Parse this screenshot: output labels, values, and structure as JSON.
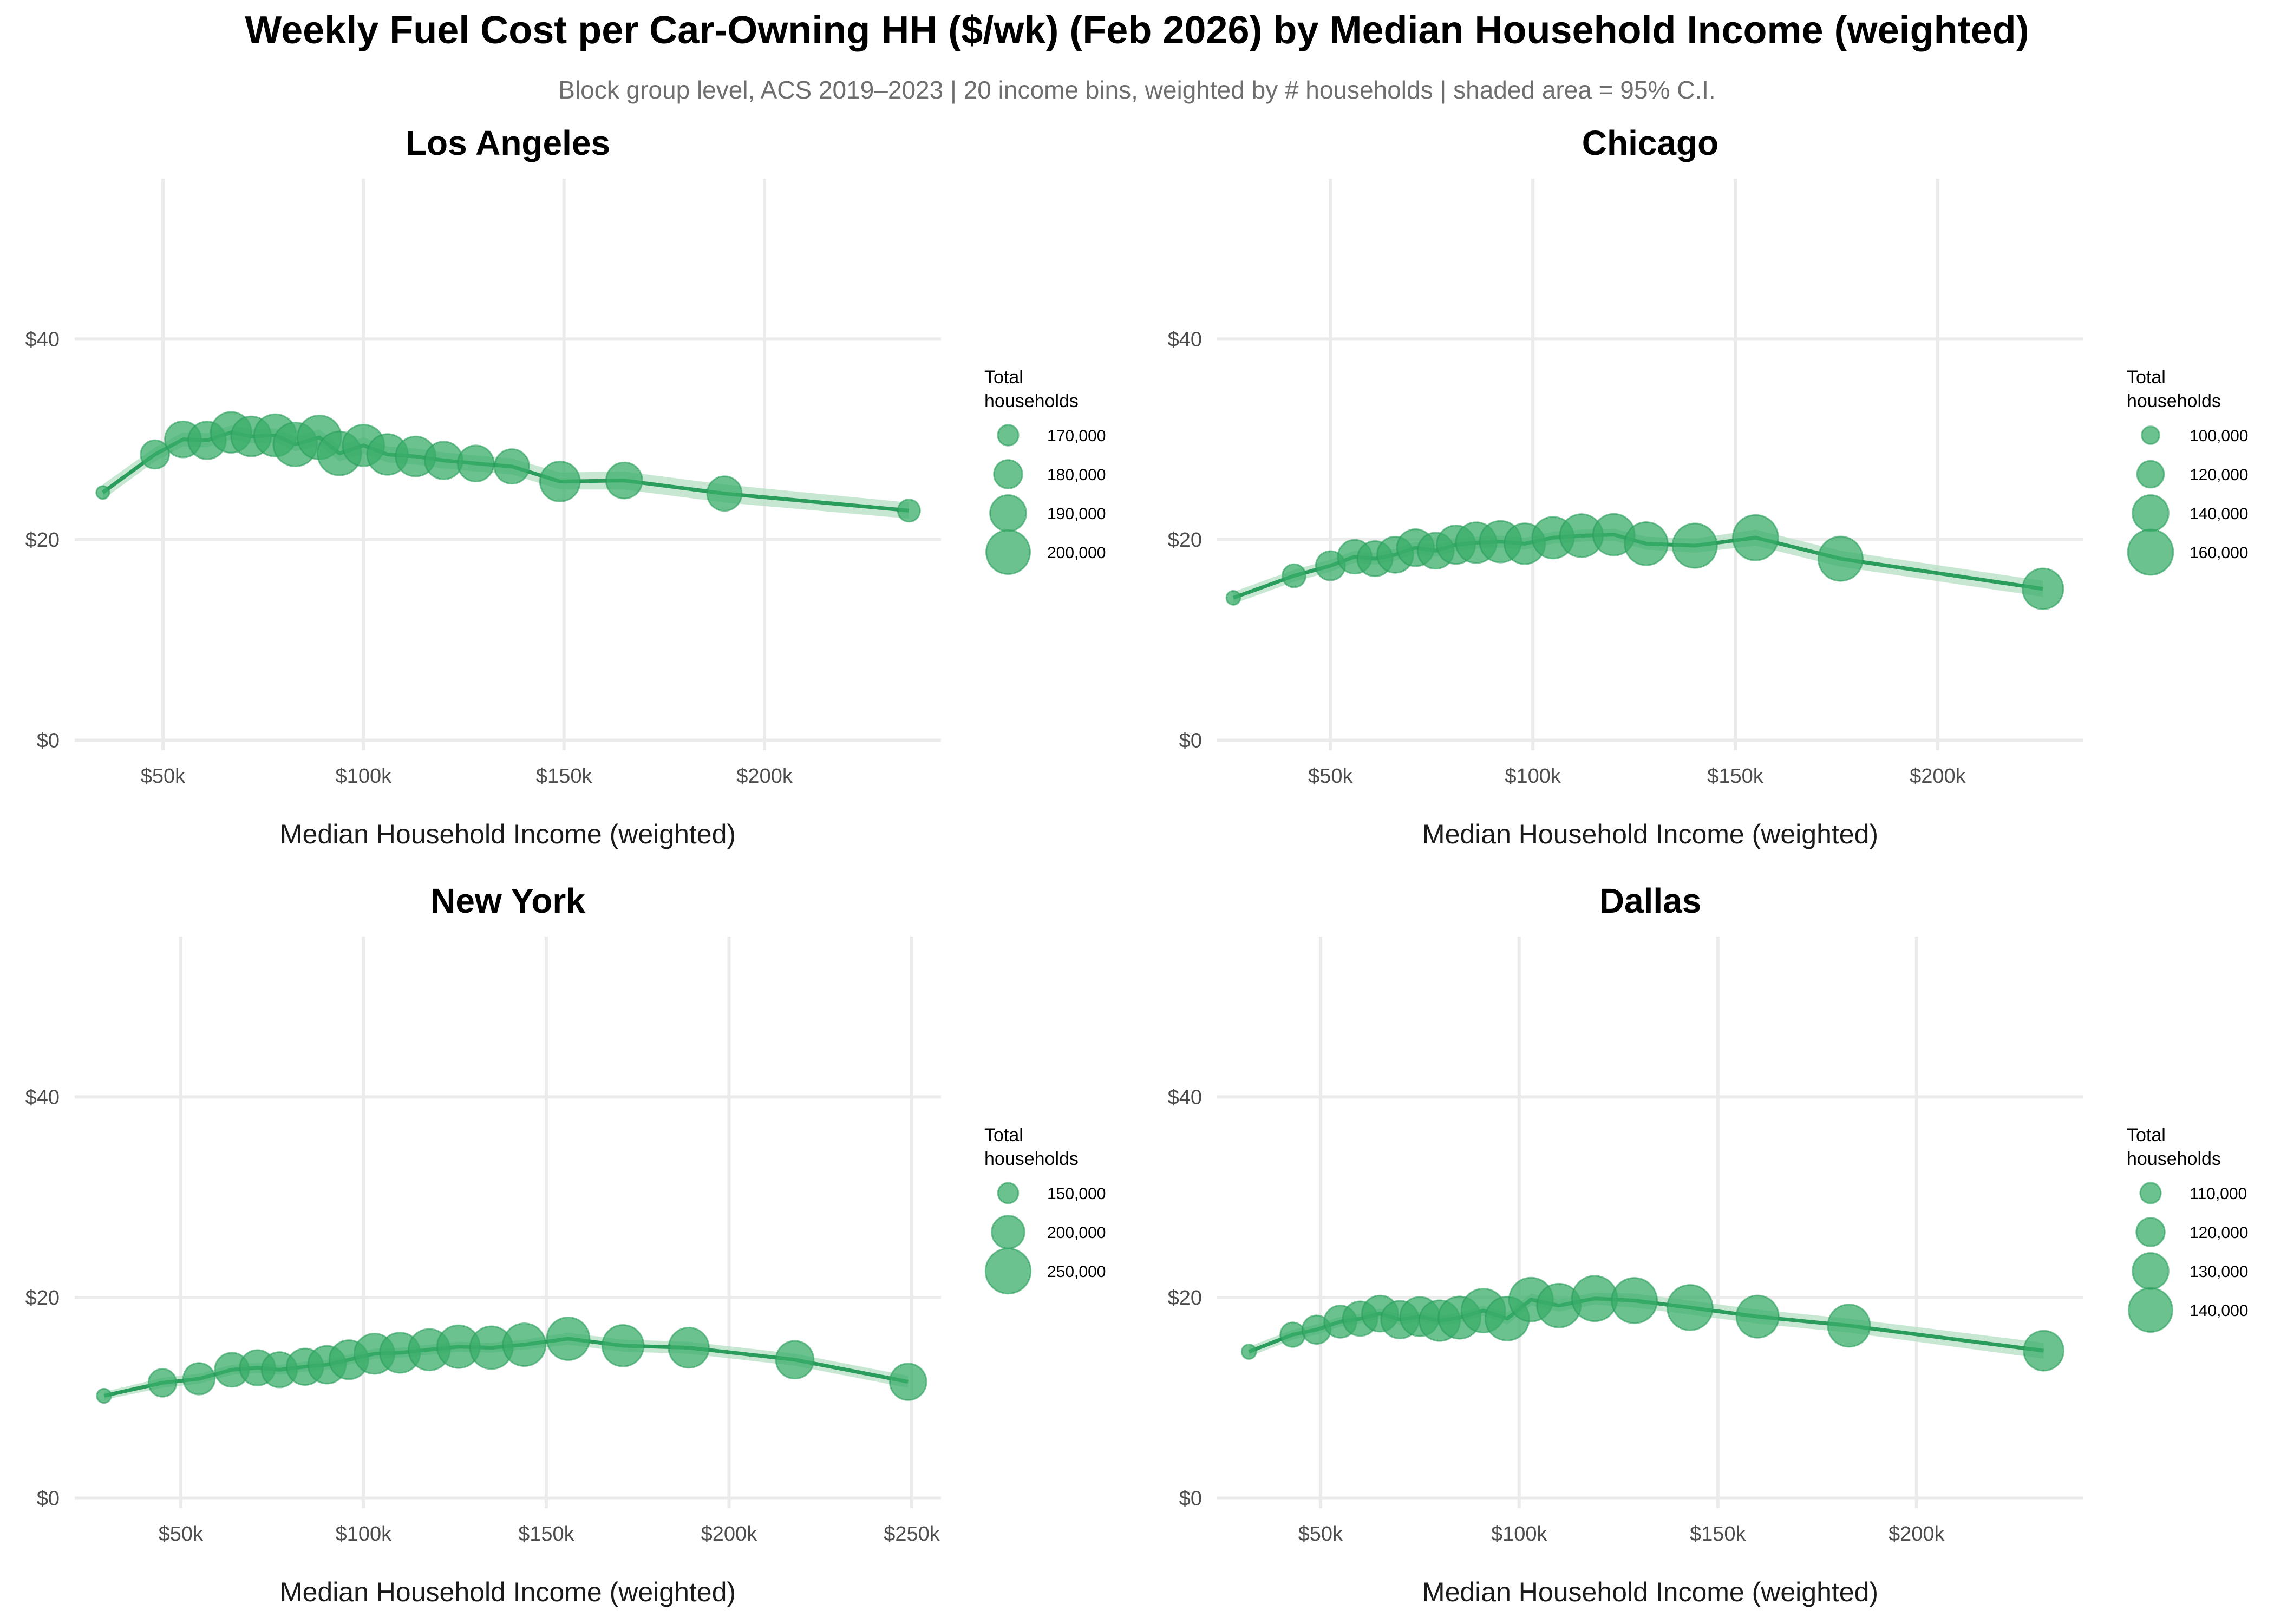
{
  "title": "Weekly Fuel Cost per Car-Owning HH ($/wk) (Feb 2026) by Median Household Income (weighted)",
  "subtitle": "Block group level, ACS 2019–2023 | 20 income bins, weighted by # households | shaded area = 95% C.I.",
  "colors": {
    "line": "#2a9d5c",
    "point": "#3aad6a",
    "band": "#b6dfc4",
    "grid": "#ebebeb"
  },
  "chart_data": [
    {
      "type": "line",
      "title": "Los Angeles",
      "xlabel": "Median Household Income (weighted)",
      "ylabel": "",
      "xlim": [
        28000,
        244000
      ],
      "ylim": [
        -1,
        56
      ],
      "x_ticks": [
        50000,
        100000,
        150000,
        200000
      ],
      "x_tick_labels": [
        "$50k",
        "$100k",
        "$150k",
        "$200k"
      ],
      "y_ticks": [
        0,
        20,
        40
      ],
      "y_tick_labels": [
        "$0",
        "$20",
        "$40"
      ],
      "grid": true,
      "legend": {
        "title_lines": [
          "Total",
          "households"
        ],
        "entries": [
          {
            "label": "170,000",
            "value": 170000
          },
          {
            "label": "180,000",
            "value": 180000
          },
          {
            "label": "190,000",
            "value": 190000
          },
          {
            "label": "200,000",
            "value": 200000
          }
        ],
        "size_range": [
          160000,
          205000
        ]
      },
      "points": [
        {
          "x": 35000,
          "y": 24.7,
          "lo": 24.0,
          "hi": 25.5,
          "n": 160000
        },
        {
          "x": 48000,
          "y": 28.5,
          "lo": 27.8,
          "hi": 29.2,
          "n": 180000
        },
        {
          "x": 55000,
          "y": 30.0,
          "lo": 29.3,
          "hi": 30.7,
          "n": 190000
        },
        {
          "x": 61000,
          "y": 29.9,
          "lo": 29.2,
          "hi": 30.6,
          "n": 192000
        },
        {
          "x": 67000,
          "y": 30.7,
          "lo": 30.0,
          "hi": 31.4,
          "n": 196000
        },
        {
          "x": 72000,
          "y": 30.3,
          "lo": 29.6,
          "hi": 31.0,
          "n": 195000
        },
        {
          "x": 78000,
          "y": 30.4,
          "lo": 29.7,
          "hi": 31.1,
          "n": 198000
        },
        {
          "x": 83000,
          "y": 29.5,
          "lo": 28.8,
          "hi": 30.3,
          "n": 200000
        },
        {
          "x": 89000,
          "y": 30.2,
          "lo": 29.4,
          "hi": 31.0,
          "n": 200000
        },
        {
          "x": 94000,
          "y": 28.6,
          "lo": 27.8,
          "hi": 29.4,
          "n": 200000
        },
        {
          "x": 100000,
          "y": 29.4,
          "lo": 28.6,
          "hi": 30.2,
          "n": 197000
        },
        {
          "x": 106000,
          "y": 28.5,
          "lo": 27.7,
          "hi": 29.3,
          "n": 196000
        },
        {
          "x": 113000,
          "y": 28.3,
          "lo": 27.5,
          "hi": 29.1,
          "n": 195000
        },
        {
          "x": 120000,
          "y": 27.9,
          "lo": 27.1,
          "hi": 28.7,
          "n": 192000
        },
        {
          "x": 128000,
          "y": 27.6,
          "lo": 26.8,
          "hi": 28.4,
          "n": 190000
        },
        {
          "x": 137000,
          "y": 27.3,
          "lo": 26.5,
          "hi": 28.1,
          "n": 188000
        },
        {
          "x": 149000,
          "y": 25.8,
          "lo": 25.0,
          "hi": 26.7,
          "n": 195000
        },
        {
          "x": 165000,
          "y": 25.9,
          "lo": 25.0,
          "hi": 26.8,
          "n": 190000
        },
        {
          "x": 190000,
          "y": 24.6,
          "lo": 23.7,
          "hi": 25.5,
          "n": 188000
        },
        {
          "x": 236000,
          "y": 22.9,
          "lo": 22.1,
          "hi": 23.7,
          "n": 172000
        }
      ]
    },
    {
      "type": "line",
      "title": "Chicago",
      "xlabel": "Median Household Income (weighted)",
      "ylabel": "",
      "xlim": [
        22000,
        236000
      ],
      "ylim": [
        -1,
        56
      ],
      "x_ticks": [
        50000,
        100000,
        150000,
        200000
      ],
      "x_tick_labels": [
        "$50k",
        "$100k",
        "$150k",
        "$200k"
      ],
      "y_ticks": [
        0,
        20,
        40
      ],
      "y_tick_labels": [
        "$0",
        "$20",
        "$40"
      ],
      "grid": true,
      "legend": {
        "title_lines": [
          "Total",
          "households"
        ],
        "entries": [
          {
            "label": "100,000",
            "value": 100000
          },
          {
            "label": "120,000",
            "value": 120000
          },
          {
            "label": "140,000",
            "value": 140000
          },
          {
            "label": "160,000",
            "value": 160000
          }
        ],
        "size_range": [
          90000,
          165000
        ]
      },
      "points": [
        {
          "x": 26000,
          "y": 14.2,
          "lo": 13.6,
          "hi": 14.8,
          "n": 92000
        },
        {
          "x": 41000,
          "y": 16.4,
          "lo": 15.8,
          "hi": 17.0,
          "n": 112000
        },
        {
          "x": 50000,
          "y": 17.4,
          "lo": 16.8,
          "hi": 18.0,
          "n": 125000
        },
        {
          "x": 56000,
          "y": 18.3,
          "lo": 17.7,
          "hi": 18.9,
          "n": 135000
        },
        {
          "x": 61000,
          "y": 18.1,
          "lo": 17.5,
          "hi": 18.7,
          "n": 138000
        },
        {
          "x": 66000,
          "y": 18.5,
          "lo": 17.9,
          "hi": 19.1,
          "n": 140000
        },
        {
          "x": 71000,
          "y": 19.2,
          "lo": 18.6,
          "hi": 19.8,
          "n": 142000
        },
        {
          "x": 76000,
          "y": 18.9,
          "lo": 18.3,
          "hi": 19.5,
          "n": 140000
        },
        {
          "x": 81000,
          "y": 19.5,
          "lo": 18.9,
          "hi": 20.1,
          "n": 145000
        },
        {
          "x": 86000,
          "y": 19.7,
          "lo": 19.1,
          "hi": 20.3,
          "n": 150000
        },
        {
          "x": 92000,
          "y": 19.8,
          "lo": 19.2,
          "hi": 20.4,
          "n": 152000
        },
        {
          "x": 98000,
          "y": 19.6,
          "lo": 19.0,
          "hi": 20.2,
          "n": 150000
        },
        {
          "x": 105000,
          "y": 20.2,
          "lo": 19.6,
          "hi": 20.8,
          "n": 152000
        },
        {
          "x": 112000,
          "y": 20.4,
          "lo": 19.8,
          "hi": 21.0,
          "n": 155000
        },
        {
          "x": 120000,
          "y": 20.5,
          "lo": 19.9,
          "hi": 21.1,
          "n": 152000
        },
        {
          "x": 128000,
          "y": 19.6,
          "lo": 19.0,
          "hi": 20.3,
          "n": 155000
        },
        {
          "x": 140000,
          "y": 19.4,
          "lo": 18.7,
          "hi": 20.1,
          "n": 158000
        },
        {
          "x": 155000,
          "y": 20.2,
          "lo": 19.4,
          "hi": 21.0,
          "n": 160000
        },
        {
          "x": 176000,
          "y": 18.1,
          "lo": 17.3,
          "hi": 18.9,
          "n": 158000
        },
        {
          "x": 226000,
          "y": 15.1,
          "lo": 14.3,
          "hi": 15.9,
          "n": 150000
        }
      ]
    },
    {
      "type": "line",
      "title": "New York",
      "xlabel": "Median Household Income (weighted)",
      "ylabel": "",
      "xlim": [
        21000,
        258000
      ],
      "ylim": [
        -1,
        56
      ],
      "x_ticks": [
        50000,
        100000,
        150000,
        200000,
        250000
      ],
      "x_tick_labels": [
        "$50k",
        "$100k",
        "$150k",
        "$200k",
        "$250k"
      ],
      "y_ticks": [
        0,
        20,
        40
      ],
      "y_tick_labels": [
        "$0",
        "$20",
        "$40"
      ],
      "grid": true,
      "legend": {
        "title_lines": [
          "Total",
          "households"
        ],
        "entries": [
          {
            "label": "150,000",
            "value": 150000
          },
          {
            "label": "200,000",
            "value": 200000
          },
          {
            "label": "250,000",
            "value": 250000
          }
        ],
        "size_range": [
          120000,
          260000
        ]
      },
      "points": [
        {
          "x": 29000,
          "y": 10.2,
          "lo": 9.8,
          "hi": 10.6,
          "n": 125000
        },
        {
          "x": 45000,
          "y": 11.5,
          "lo": 11.0,
          "hi": 12.0,
          "n": 180000
        },
        {
          "x": 55000,
          "y": 11.9,
          "lo": 11.4,
          "hi": 12.4,
          "n": 195000
        },
        {
          "x": 64000,
          "y": 12.8,
          "lo": 12.3,
          "hi": 13.3,
          "n": 205000
        },
        {
          "x": 71000,
          "y": 13.0,
          "lo": 12.5,
          "hi": 13.5,
          "n": 210000
        },
        {
          "x": 77000,
          "y": 12.8,
          "lo": 12.3,
          "hi": 13.3,
          "n": 210000
        },
        {
          "x": 84000,
          "y": 13.1,
          "lo": 12.6,
          "hi": 13.6,
          "n": 215000
        },
        {
          "x": 90000,
          "y": 13.3,
          "lo": 12.8,
          "hi": 13.8,
          "n": 220000
        },
        {
          "x": 96000,
          "y": 13.8,
          "lo": 13.3,
          "hi": 14.3,
          "n": 225000
        },
        {
          "x": 103000,
          "y": 14.4,
          "lo": 13.9,
          "hi": 14.9,
          "n": 230000
        },
        {
          "x": 110000,
          "y": 14.5,
          "lo": 14.0,
          "hi": 15.0,
          "n": 230000
        },
        {
          "x": 118000,
          "y": 14.8,
          "lo": 14.3,
          "hi": 15.3,
          "n": 235000
        },
        {
          "x": 126000,
          "y": 15.1,
          "lo": 14.6,
          "hi": 15.6,
          "n": 240000
        },
        {
          "x": 135000,
          "y": 15.0,
          "lo": 14.5,
          "hi": 15.5,
          "n": 240000
        },
        {
          "x": 144000,
          "y": 15.3,
          "lo": 14.8,
          "hi": 15.8,
          "n": 240000
        },
        {
          "x": 156000,
          "y": 15.9,
          "lo": 15.3,
          "hi": 16.5,
          "n": 240000
        },
        {
          "x": 171000,
          "y": 15.2,
          "lo": 14.6,
          "hi": 15.8,
          "n": 235000
        },
        {
          "x": 189000,
          "y": 15.0,
          "lo": 14.4,
          "hi": 15.6,
          "n": 230000
        },
        {
          "x": 218000,
          "y": 13.8,
          "lo": 13.2,
          "hi": 14.4,
          "n": 220000
        },
        {
          "x": 249000,
          "y": 11.6,
          "lo": 11.0,
          "hi": 12.2,
          "n": 215000
        }
      ]
    },
    {
      "type": "line",
      "title": "Dallas",
      "xlabel": "Median Household Income (weighted)",
      "ylabel": "",
      "xlim": [
        24000,
        242000
      ],
      "ylim": [
        -1,
        56
      ],
      "x_ticks": [
        50000,
        100000,
        150000,
        200000
      ],
      "x_tick_labels": [
        "$50k",
        "$100k",
        "$150k",
        "$200k"
      ],
      "y_ticks": [
        0,
        20,
        40
      ],
      "y_tick_labels": [
        "$0",
        "$20",
        "$40"
      ],
      "grid": true,
      "legend": {
        "title_lines": [
          "Total",
          "households"
        ],
        "entries": [
          {
            "label": "110,000",
            "value": 110000
          },
          {
            "label": "120,000",
            "value": 120000
          },
          {
            "label": "130,000",
            "value": 130000
          },
          {
            "label": "140,000",
            "value": 140000
          }
        ],
        "size_range": [
          100000,
          145000
        ]
      },
      "points": [
        {
          "x": 32000,
          "y": 14.6,
          "lo": 14.1,
          "hi": 15.1,
          "n": 102000
        },
        {
          "x": 43000,
          "y": 16.3,
          "lo": 15.8,
          "hi": 16.8,
          "n": 115000
        },
        {
          "x": 49000,
          "y": 16.8,
          "lo": 16.3,
          "hi": 17.3,
          "n": 120000
        },
        {
          "x": 55000,
          "y": 17.6,
          "lo": 17.1,
          "hi": 18.1,
          "n": 125000
        },
        {
          "x": 60000,
          "y": 17.9,
          "lo": 17.4,
          "hi": 18.4,
          "n": 128000
        },
        {
          "x": 65000,
          "y": 18.4,
          "lo": 17.9,
          "hi": 18.9,
          "n": 130000
        },
        {
          "x": 70000,
          "y": 17.8,
          "lo": 17.3,
          "hi": 18.3,
          "n": 132000
        },
        {
          "x": 75000,
          "y": 18.1,
          "lo": 17.6,
          "hi": 18.6,
          "n": 134000
        },
        {
          "x": 80000,
          "y": 17.7,
          "lo": 17.2,
          "hi": 18.2,
          "n": 136000
        },
        {
          "x": 85000,
          "y": 18.0,
          "lo": 17.5,
          "hi": 18.5,
          "n": 138000
        },
        {
          "x": 91000,
          "y": 18.7,
          "lo": 18.2,
          "hi": 19.2,
          "n": 140000
        },
        {
          "x": 97000,
          "y": 17.9,
          "lo": 17.3,
          "hi": 18.5,
          "n": 140000
        },
        {
          "x": 103000,
          "y": 19.8,
          "lo": 19.2,
          "hi": 20.4,
          "n": 140000
        },
        {
          "x": 110000,
          "y": 19.2,
          "lo": 18.6,
          "hi": 19.8,
          "n": 140000
        },
        {
          "x": 119000,
          "y": 19.9,
          "lo": 19.3,
          "hi": 20.5,
          "n": 142000
        },
        {
          "x": 129000,
          "y": 19.7,
          "lo": 19.0,
          "hi": 20.4,
          "n": 142000
        },
        {
          "x": 143000,
          "y": 19.0,
          "lo": 18.3,
          "hi": 19.7,
          "n": 142000
        },
        {
          "x": 160000,
          "y": 18.1,
          "lo": 17.4,
          "hi": 18.8,
          "n": 138000
        },
        {
          "x": 183000,
          "y": 17.2,
          "lo": 16.5,
          "hi": 17.9,
          "n": 138000
        },
        {
          "x": 232000,
          "y": 14.7,
          "lo": 13.9,
          "hi": 15.5,
          "n": 135000
        }
      ]
    }
  ]
}
